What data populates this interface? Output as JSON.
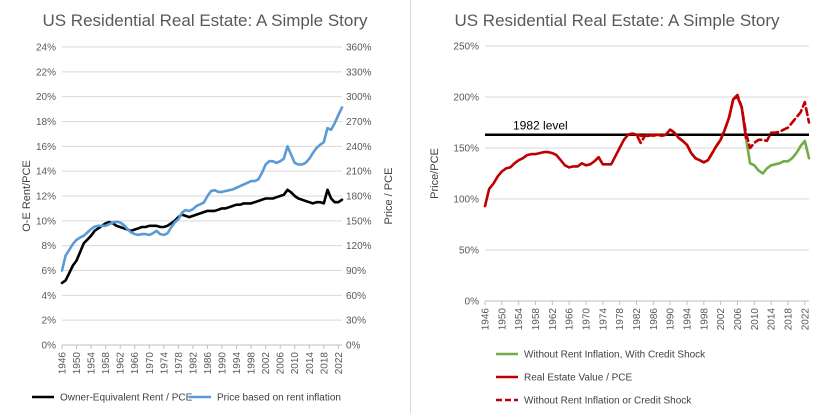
{
  "chart_data": [
    {
      "type": "line",
      "title": "US Residential Real Estate: A Simple Story",
      "xlabel": "",
      "ylabel": "O-E Rent/PCE",
      "y2label": "Price / PCE",
      "ylim": [
        0,
        24
      ],
      "y2lim": [
        0,
        360
      ],
      "xlim": [
        1946,
        2023
      ],
      "y_ticks": [
        "0%",
        "2%",
        "4%",
        "6%",
        "8%",
        "10%",
        "12%",
        "14%",
        "16%",
        "18%",
        "20%",
        "22%",
        "24%"
      ],
      "y2_ticks": [
        "0%",
        "30%",
        "60%",
        "90%",
        "120%",
        "150%",
        "180%",
        "210%",
        "240%",
        "270%",
        "300%",
        "330%",
        "360%"
      ],
      "x_ticks": [
        "1946",
        "1950",
        "1954",
        "1958",
        "1962",
        "1966",
        "1970",
        "1974",
        "1978",
        "1982",
        "1986",
        "1990",
        "1994",
        "1998",
        "2002",
        "2006",
        "2010",
        "2014",
        "2018",
        "2022"
      ],
      "legend_position": "bottom",
      "gridlines": "horizontal",
      "series": [
        {
          "name": "Owner-Equivalent Rent / PCE",
          "axis": "left",
          "color": "#000000",
          "x": [
            1946,
            1947,
            1948,
            1949,
            1950,
            1951,
            1952,
            1953,
            1954,
            1955,
            1956,
            1957,
            1958,
            1959,
            1960,
            1961,
            1962,
            1963,
            1964,
            1965,
            1966,
            1967,
            1968,
            1969,
            1970,
            1971,
            1972,
            1973,
            1974,
            1975,
            1976,
            1977,
            1978,
            1979,
            1980,
            1981,
            1982,
            1983,
            1984,
            1985,
            1986,
            1987,
            1988,
            1989,
            1990,
            1991,
            1992,
            1993,
            1994,
            1995,
            1996,
            1997,
            1998,
            1999,
            2000,
            2001,
            2002,
            2003,
            2004,
            2005,
            2006,
            2007,
            2008,
            2009,
            2010,
            2011,
            2012,
            2013,
            2014,
            2015,
            2016,
            2017,
            2018,
            2019,
            2020,
            2021,
            2022,
            2023
          ],
          "values": [
            5.0,
            5.2,
            5.8,
            6.4,
            6.8,
            7.5,
            8.2,
            8.5,
            8.8,
            9.2,
            9.4,
            9.6,
            9.8,
            9.9,
            9.8,
            9.6,
            9.5,
            9.4,
            9.3,
            9.2,
            9.3,
            9.4,
            9.5,
            9.5,
            9.6,
            9.6,
            9.6,
            9.5,
            9.5,
            9.6,
            9.8,
            10.0,
            10.3,
            10.5,
            10.4,
            10.3,
            10.4,
            10.5,
            10.6,
            10.7,
            10.8,
            10.8,
            10.8,
            10.9,
            11.0,
            11.0,
            11.1,
            11.2,
            11.3,
            11.3,
            11.4,
            11.4,
            11.4,
            11.5,
            11.6,
            11.7,
            11.8,
            11.8,
            11.8,
            11.9,
            12.0,
            12.1,
            12.5,
            12.3,
            12.0,
            11.8,
            11.7,
            11.6,
            11.5,
            11.4,
            11.5,
            11.5,
            11.4,
            12.5,
            11.8,
            11.5,
            11.5,
            11.7
          ]
        },
        {
          "name": "Price based on rent inflation",
          "axis": "right",
          "color": "#5b9bd5",
          "x": [
            1946,
            1947,
            1948,
            1949,
            1950,
            1951,
            1952,
            1953,
            1954,
            1955,
            1956,
            1957,
            1958,
            1959,
            1960,
            1961,
            1962,
            1963,
            1964,
            1965,
            1966,
            1967,
            1968,
            1969,
            1970,
            1971,
            1972,
            1973,
            1974,
            1975,
            1976,
            1977,
            1978,
            1979,
            1980,
            1981,
            1982,
            1983,
            1984,
            1985,
            1986,
            1987,
            1988,
            1989,
            1990,
            1991,
            1992,
            1993,
            1994,
            1995,
            1996,
            1997,
            1998,
            1999,
            2000,
            2001,
            2002,
            2003,
            2004,
            2005,
            2006,
            2007,
            2008,
            2009,
            2010,
            2011,
            2012,
            2013,
            2014,
            2015,
            2016,
            2017,
            2018,
            2019,
            2020,
            2021,
            2022,
            2023
          ],
          "values": [
            90,
            108,
            115,
            122,
            127,
            130,
            132,
            136,
            140,
            143,
            144,
            144,
            144,
            146,
            148,
            149,
            148,
            145,
            140,
            136,
            134,
            133,
            134,
            134,
            133,
            135,
            138,
            134,
            133,
            135,
            142,
            148,
            152,
            160,
            163,
            162,
            164,
            168,
            170,
            172,
            180,
            186,
            187,
            185,
            185,
            186,
            187,
            188,
            190,
            192,
            194,
            196,
            198,
            198,
            200,
            208,
            218,
            222,
            222,
            220,
            222,
            225,
            240,
            230,
            220,
            218,
            218,
            220,
            225,
            232,
            238,
            242,
            245,
            262,
            260,
            268,
            278,
            287
          ]
        }
      ]
    },
    {
      "type": "line",
      "title": "US Residential Real Estate: A Simple Story",
      "xlabel": "",
      "ylabel": "Price/PCE",
      "ylim": [
        0,
        250
      ],
      "xlim": [
        1946,
        2023
      ],
      "y_ticks": [
        "0%",
        "50%",
        "100%",
        "150%",
        "200%",
        "250%"
      ],
      "x_ticks": [
        "1946",
        "1950",
        "1954",
        "1958",
        "1962",
        "1966",
        "1970",
        "1974",
        "1978",
        "1982",
        "1986",
        "1990",
        "1994",
        "1998",
        "2002",
        "2006",
        "2010",
        "2014",
        "2018",
        "2022"
      ],
      "legend_position": "bottom",
      "gridlines": "horizontal",
      "annotation": {
        "text": "1982 level",
        "value": 163
      },
      "series": [
        {
          "name": "Without Rent Inflation, With Credit Shock",
          "color": "#70ad47",
          "dash": "solid",
          "x": [
            2008,
            2009,
            2010,
            2011,
            2012,
            2013,
            2014,
            2015,
            2016,
            2017,
            2018,
            2019,
            2020,
            2021,
            2022,
            2023
          ],
          "values": [
            160,
            135,
            133,
            128,
            125,
            130,
            133,
            134,
            135,
            137,
            137,
            140,
            145,
            152,
            157,
            140
          ]
        },
        {
          "name": "Real Estate Value / PCE",
          "color": "#c00000",
          "dash": "solid",
          "x": [
            1946,
            1947,
            1948,
            1949,
            1950,
            1951,
            1952,
            1953,
            1954,
            1955,
            1956,
            1957,
            1958,
            1959,
            1960,
            1961,
            1962,
            1963,
            1964,
            1965,
            1966,
            1967,
            1968,
            1969,
            1970,
            1971,
            1972,
            1973,
            1974,
            1975,
            1976,
            1977,
            1978,
            1979,
            1980,
            1981,
            1982,
            1983,
            1984,
            1985,
            1986,
            1987,
            1988,
            1989,
            1990,
            1991,
            1992,
            1993,
            1994,
            1995,
            1996,
            1997,
            1998,
            1999,
            2000,
            2001,
            2002,
            2003,
            2004,
            2005,
            2006,
            2007,
            2008
          ],
          "values": [
            93,
            110,
            115,
            122,
            127,
            130,
            131,
            135,
            138,
            140,
            143,
            144,
            144,
            145,
            146,
            146,
            145,
            143,
            138,
            133,
            131,
            132,
            132,
            135,
            133,
            134,
            137,
            141,
            134,
            134,
            134,
            142,
            150,
            158,
            163,
            164,
            163,
            162,
            162,
            162,
            163,
            163,
            162,
            163,
            168,
            165,
            160,
            157,
            153,
            145,
            140,
            138,
            136,
            138,
            145,
            152,
            158,
            168,
            180,
            198,
            200,
            190,
            160
          ]
        },
        {
          "name": "Without Rent Inflation or Credit Shock",
          "color": "#c00000",
          "dash": "dashed",
          "x": [
            1980,
            1981,
            1982,
            1983,
            1984,
            1985,
            1986,
            1987,
            1988,
            1989,
            1990,
            1991,
            1992,
            1993,
            1994,
            1995,
            1996,
            1997,
            1998,
            1999,
            2000,
            2001,
            2002,
            2003,
            2004,
            2005,
            2006,
            2007,
            2008,
            2009,
            2010,
            2011,
            2012,
            2013,
            2014,
            2015,
            2016,
            2017,
            2018,
            2019,
            2020,
            2021,
            2022,
            2023
          ],
          "values": [
            163,
            164,
            163,
            155,
            162,
            163,
            162,
            163,
            162,
            163,
            168,
            165,
            160,
            157,
            153,
            145,
            140,
            138,
            136,
            138,
            145,
            152,
            158,
            168,
            180,
            198,
            202,
            190,
            165,
            150,
            155,
            158,
            158,
            157,
            165,
            165,
            166,
            168,
            170,
            175,
            180,
            185,
            195,
            175
          ]
        }
      ]
    }
  ]
}
